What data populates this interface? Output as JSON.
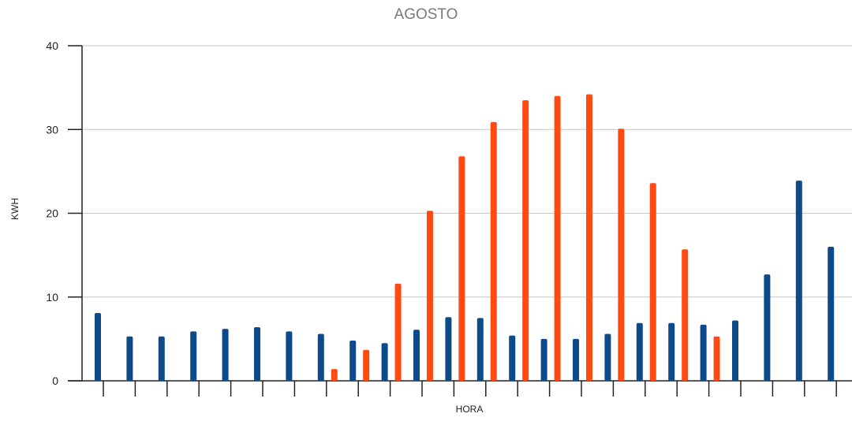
{
  "chart_data": {
    "type": "bar",
    "title": "AGOSTO",
    "xlabel": "HORA",
    "ylabel": "KWH",
    "ylim": [
      0,
      40
    ],
    "yticks": [
      0,
      10,
      20,
      30,
      40
    ],
    "grid": true,
    "colors": [
      "#0d4a8a",
      "#ff4a12"
    ],
    "series": [
      {
        "values": [
          8.1,
          5.3,
          5.3,
          5.9,
          6.2,
          6.4,
          5.9,
          5.6,
          4.8,
          4.5,
          6.1,
          7.6,
          7.5,
          5.4,
          5.0,
          5.0,
          5.6,
          6.9,
          6.9,
          6.7,
          7.2,
          12.7,
          23.9,
          16.0
        ]
      },
      {
        "values": [
          0,
          0,
          0,
          0,
          0,
          0,
          0,
          1.4,
          3.7,
          11.6,
          20.3,
          26.8,
          30.9,
          33.5,
          34.0,
          34.2,
          30.1,
          23.6,
          15.7,
          5.3,
          0,
          0,
          0,
          0
        ]
      }
    ]
  }
}
